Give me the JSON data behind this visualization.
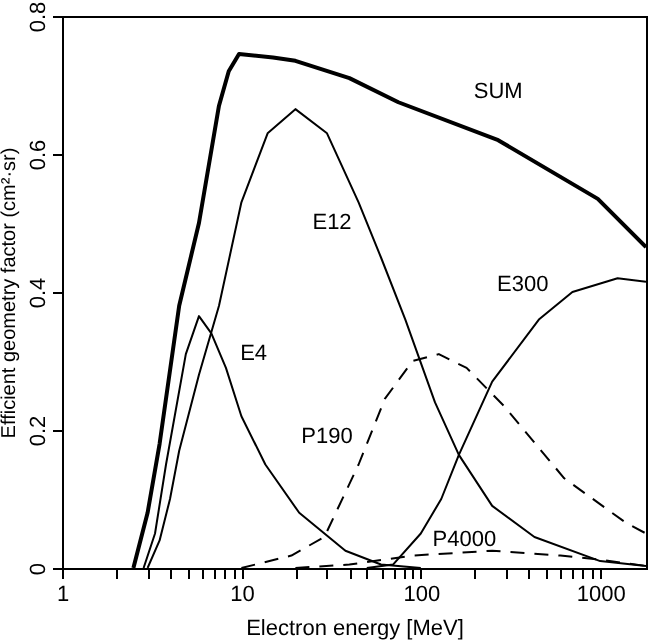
{
  "chart_data": {
    "type": "line",
    "xlabel": "Electron energy [MeV]",
    "ylabel": "Efficient geometry factor (cm²·sr)",
    "log": "x",
    "xlim": [
      1,
      1800
    ],
    "ylim": [
      0,
      0.8
    ],
    "xticks": [
      1,
      {
        "value": 2,
        "label": null
      },
      {
        "value": 3,
        "label": null
      },
      {
        "value": 4,
        "label": null
      },
      {
        "value": 5,
        "label": null
      },
      {
        "value": 6,
        "label": null
      },
      {
        "value": 7,
        "label": null
      },
      {
        "value": 8,
        "label": null
      },
      {
        "value": 9,
        "label": null
      },
      10,
      {
        "value": 20,
        "label": null
      },
      {
        "value": 30,
        "label": null
      },
      {
        "value": 40,
        "label": null
      },
      {
        "value": 50,
        "label": null
      },
      {
        "value": 60,
        "label": null
      },
      {
        "value": 70,
        "label": null
      },
      {
        "value": 80,
        "label": null
      },
      {
        "value": 90,
        "label": null
      },
      100,
      {
        "value": 200,
        "label": null
      },
      {
        "value": 300,
        "label": null
      },
      {
        "value": 400,
        "label": null
      },
      {
        "value": 500,
        "label": null
      },
      {
        "value": 600,
        "label": null
      },
      {
        "value": 700,
        "label": null
      },
      {
        "value": 800,
        "label": null
      },
      {
        "value": 900,
        "label": null
      },
      1000
    ],
    "yticks": [
      0,
      0.2,
      0.4,
      0.6,
      0.8
    ],
    "grid": false,
    "marker": "none",
    "series": [
      {
        "name": "SUM",
        "color": "#000000",
        "line_style": "solid",
        "x": [
          2.5,
          3,
          3.5,
          4.5,
          5.8,
          7.5,
          8.5,
          9.7,
          15,
          20,
          40,
          75,
          270,
          970,
          1800
        ],
        "values": [
          0,
          0.08,
          0.18,
          0.38,
          0.5,
          0.67,
          0.72,
          0.745,
          0.74,
          0.735,
          0.71,
          0.675,
          0.62,
          0.535,
          0.465
        ]
      },
      {
        "name": "E12",
        "color": "#000000",
        "line_style": "solid",
        "x": [
          3,
          3.5,
          4,
          4.5,
          5.8,
          7.5,
          10,
          14,
          20,
          30,
          45,
          60,
          82,
          120,
          163,
          250,
          430,
          1000,
          1800
        ],
        "values": [
          0,
          0.04,
          0.1,
          0.17,
          0.28,
          0.38,
          0.53,
          0.63,
          0.665,
          0.63,
          0.53,
          0.45,
          0.36,
          0.24,
          0.164,
          0.09,
          0.045,
          0.01,
          0.003
        ]
      },
      {
        "name": "E4",
        "color": "#000000",
        "line_style": "solid",
        "x": [
          2.85,
          3.3,
          3.8,
          4.9,
          5.8,
          6.8,
          8.2,
          10,
          13.6,
          21,
          38,
          60,
          100
        ],
        "values": [
          0,
          0.05,
          0.15,
          0.31,
          0.365,
          0.34,
          0.29,
          0.22,
          0.15,
          0.08,
          0.025,
          0.005,
          0
        ]
      },
      {
        "name": "E300",
        "color": "#000000",
        "line_style": "solid",
        "x": [
          50,
          70,
          100,
          130,
          163,
          250,
          455,
          700,
          1250,
          1800
        ],
        "values": [
          0,
          0.005,
          0.05,
          0.1,
          0.164,
          0.27,
          0.36,
          0.4,
          0.42,
          0.415
        ]
      },
      {
        "name": "P190",
        "color": "#000000",
        "line_style": "dashed",
        "x": [
          10,
          19,
          29,
          45,
          63,
          90,
          126,
          180,
          290,
          630,
          1400,
          1800
        ],
        "values": [
          0,
          0.018,
          0.045,
          0.15,
          0.245,
          0.3,
          0.31,
          0.29,
          0.235,
          0.13,
          0.065,
          0.05
        ]
      },
      {
        "name": "P4000",
        "color": "#000000",
        "line_style": "dashed",
        "x": [
          20,
          40,
          90,
          250,
          600,
          1000,
          1800
        ],
        "values": [
          0,
          0.005,
          0.018,
          0.025,
          0.018,
          0.012,
          0.003
        ]
      }
    ]
  }
}
